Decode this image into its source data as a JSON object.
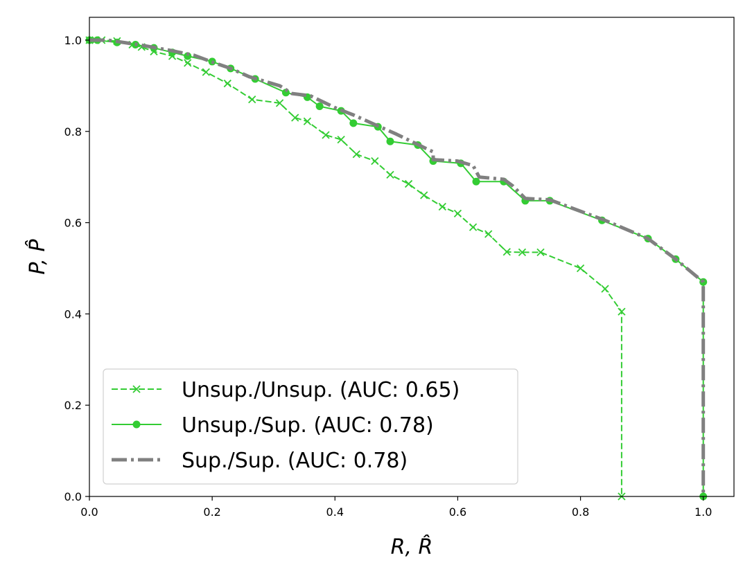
{
  "chart_data": {
    "type": "line",
    "xlabel": "R, R̂",
    "ylabel": "P, P̂",
    "xlim": [
      0.0,
      1.05
    ],
    "ylim": [
      0.0,
      1.05
    ],
    "xticks": [
      0.0,
      0.2,
      0.4,
      0.6,
      0.8,
      1.0
    ],
    "yticks": [
      0.0,
      0.2,
      0.4,
      0.6,
      0.8,
      1.0
    ],
    "xtick_labels": [
      "0.0",
      "0.2",
      "0.4",
      "0.6",
      "0.8",
      "1.0"
    ],
    "ytick_labels": [
      "0.0",
      "0.2",
      "0.4",
      "0.6",
      "0.8",
      "1.0"
    ],
    "grid": false,
    "legend_position": "lower-left",
    "series": [
      {
        "name": "Unsup./Unsup. (AUC: 0.65)",
        "color": "#33cc33",
        "line_style": "dashed",
        "marker": "x",
        "x": [
          0.0,
          0.01,
          0.02,
          0.045,
          0.07,
          0.085,
          0.105,
          0.135,
          0.16,
          0.19,
          0.225,
          0.265,
          0.31,
          0.335,
          0.355,
          0.385,
          0.41,
          0.435,
          0.465,
          0.49,
          0.52,
          0.545,
          0.575,
          0.6,
          0.625,
          0.65,
          0.68,
          0.705,
          0.735,
          0.8,
          0.84,
          0.867,
          0.867
        ],
        "y": [
          1.0,
          1.0,
          1.0,
          0.998,
          0.99,
          0.985,
          0.975,
          0.965,
          0.95,
          0.93,
          0.905,
          0.87,
          0.862,
          0.83,
          0.822,
          0.792,
          0.782,
          0.75,
          0.735,
          0.705,
          0.685,
          0.66,
          0.635,
          0.62,
          0.59,
          0.575,
          0.536,
          0.535,
          0.535,
          0.5,
          0.455,
          0.405,
          0.0
        ]
      },
      {
        "name": "Unsup./Sup. (AUC: 0.78)",
        "color": "#33cc33",
        "line_style": "solid",
        "marker": "o",
        "x": [
          0.0,
          0.013,
          0.045,
          0.075,
          0.105,
          0.135,
          0.16,
          0.2,
          0.23,
          0.27,
          0.32,
          0.355,
          0.375,
          0.41,
          0.43,
          0.47,
          0.49,
          0.535,
          0.56,
          0.605,
          0.63,
          0.675,
          0.71,
          0.75,
          0.835,
          0.91,
          0.955,
          1.0,
          1.0
        ],
        "y": [
          1.0,
          1.0,
          0.995,
          0.99,
          0.983,
          0.973,
          0.965,
          0.953,
          0.938,
          0.915,
          0.885,
          0.875,
          0.855,
          0.845,
          0.818,
          0.81,
          0.778,
          0.77,
          0.735,
          0.73,
          0.69,
          0.69,
          0.648,
          0.648,
          0.605,
          0.565,
          0.52,
          0.47,
          0.0
        ]
      },
      {
        "name": "Sup./Sup. (AUC: 0.78)",
        "color": "#808080",
        "line_style": "dashdot",
        "marker": "",
        "x": [
          0.0,
          0.03,
          0.08,
          0.13,
          0.17,
          0.2,
          0.23,
          0.26,
          0.31,
          0.33,
          0.36,
          0.4,
          0.43,
          0.47,
          0.5,
          0.54,
          0.56,
          0.56,
          0.6,
          0.625,
          0.635,
          0.675,
          0.69,
          0.71,
          0.75,
          0.8,
          0.84,
          0.91,
          0.955,
          1.0,
          1.0
        ],
        "y": [
          1.0,
          1.0,
          0.99,
          0.978,
          0.967,
          0.952,
          0.938,
          0.92,
          0.9,
          0.883,
          0.878,
          0.852,
          0.836,
          0.812,
          0.794,
          0.768,
          0.755,
          0.738,
          0.735,
          0.725,
          0.7,
          0.695,
          0.68,
          0.653,
          0.65,
          0.625,
          0.605,
          0.565,
          0.52,
          0.47,
          0.0
        ]
      }
    ]
  }
}
